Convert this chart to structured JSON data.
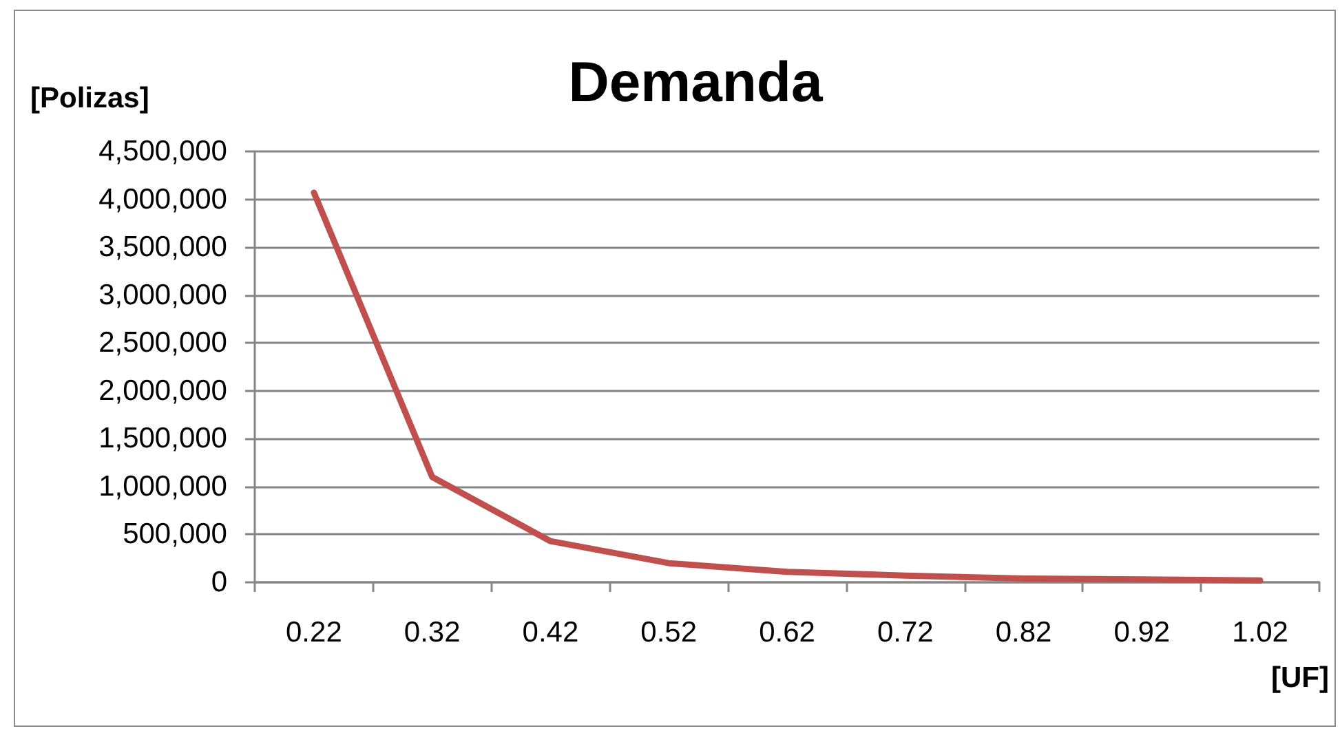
{
  "chart_data": {
    "type": "line",
    "title": "Demanda",
    "xlabel": "[UF]",
    "ylabel": "[Polizas]",
    "categories": [
      "0.22",
      "0.32",
      "0.42",
      "0.52",
      "0.62",
      "0.72",
      "0.82",
      "0.92",
      "1.02"
    ],
    "series": [
      {
        "color": "#c0504d",
        "values": [
          4070000,
          1100000,
          430000,
          200000,
          110000,
          70000,
          40000,
          30000,
          20000
        ]
      }
    ],
    "ylim": [
      0,
      4500000
    ],
    "yticks": [
      0,
      {
        "value": 500000,
        "label": "500,000"
      },
      {
        "value": 1000000,
        "label": "1,000,000"
      },
      {
        "value": 1500000,
        "label": "1,500,000"
      },
      {
        "value": 2000000,
        "label": "2,000,000"
      },
      {
        "value": 2500000,
        "label": "2,500,000"
      },
      {
        "value": 3000000,
        "label": "3,000,000"
      },
      {
        "value": 3500000,
        "label": "3,500,000"
      },
      {
        "value": 4000000,
        "label": "4,000,000"
      },
      {
        "value": 4500000,
        "label": "4,500,000"
      }
    ],
    "grid": "y",
    "marker": "none",
    "line_style": "solid"
  }
}
